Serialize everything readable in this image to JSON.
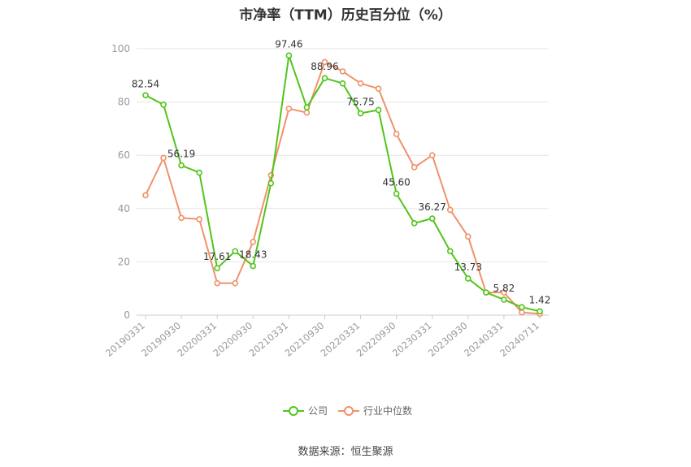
{
  "page": {
    "source": "数据来源：恒生聚源"
  },
  "chart_data": {
    "type": "line",
    "title": "市净率（TTM）历史百分位（%）",
    "categories": [
      "20190331",
      "20190630",
      "20190930",
      "20191231",
      "20200331",
      "20200630",
      "20200930",
      "20201231",
      "20210331",
      "20210630",
      "20210930",
      "20211231",
      "20220331",
      "20220630",
      "20220930",
      "20221231",
      "20230331",
      "20230630",
      "20230930",
      "20231231",
      "20240331",
      "20240630",
      "20240711"
    ],
    "x_tick_labels": [
      "20190331",
      "20190930",
      "20200331",
      "20200930",
      "20210331",
      "20210930",
      "20220331",
      "20220930",
      "20230331",
      "20230930",
      "20240331",
      "20240711"
    ],
    "y_ticks": [
      0,
      20,
      40,
      60,
      80,
      100
    ],
    "ylim": [
      0,
      100
    ],
    "grid": true,
    "legend_position": "bottom",
    "series": [
      {
        "name": "公司",
        "color": "#52c41a",
        "values": [
          82.54,
          79.0,
          56.19,
          53.5,
          17.61,
          24.0,
          18.43,
          49.5,
          97.46,
          78.0,
          88.96,
          87.0,
          75.75,
          77.0,
          45.6,
          34.5,
          36.27,
          24.0,
          13.73,
          8.5,
          5.82,
          3.0,
          1.42
        ],
        "labels": {
          "0": "82.54",
          "2": "56.19",
          "4": "17.61",
          "6": "18.43",
          "8": "97.46",
          "10": "88.96",
          "12": "75.75",
          "14": "45.60",
          "16": "36.27",
          "18": "13.73",
          "20": "5.82",
          "22": "1.42"
        }
      },
      {
        "name": "行业中位数",
        "color": "#f0926a",
        "values": [
          45.0,
          59.0,
          36.5,
          36.0,
          12.0,
          12.0,
          27.5,
          52.5,
          77.5,
          76.0,
          95.0,
          91.5,
          87.0,
          85.0,
          68.0,
          55.5,
          60.0,
          39.5,
          29.5,
          8.5,
          8.5,
          1.0,
          0.5
        ]
      }
    ]
  }
}
